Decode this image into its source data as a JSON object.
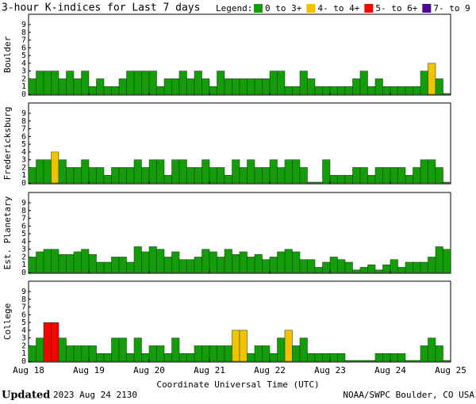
{
  "title": "3-hour K-indices for Last 7 days",
  "legend_title": "Legend:",
  "legend": [
    {
      "label": "0 to 3+",
      "color": "#159c0a"
    },
    {
      "label": "4- to 4+",
      "color": "#f2c200"
    },
    {
      "label": "5- to 6+",
      "color": "#ff0000"
    },
    {
      "label": "7- to 9",
      "color": "#4b0a8c"
    }
  ],
  "xticks": [
    "Aug 18",
    "Aug 19",
    "Aug 20",
    "Aug 21",
    "Aug 22",
    "Aug 23",
    "Aug 24",
    "Aug 25"
  ],
  "xlabel": "Coordinate Universal Time (UTC)",
  "footer": {
    "updated_label": "Updated",
    "updated": "2023 Aug 24 2130",
    "source": "NOAA/SWPC Boulder, CO USA"
  },
  "chart_data": [
    {
      "type": "bar",
      "ylabel": "Boulder",
      "ylim": [
        0,
        9
      ],
      "yticks": [
        0,
        1,
        2,
        3,
        4,
        5,
        6,
        7,
        8,
        9
      ],
      "values": [
        2,
        3,
        3,
        3,
        2,
        3,
        2,
        3,
        1,
        2,
        1,
        1,
        2,
        3,
        3,
        3,
        3,
        1,
        2,
        2,
        3,
        2,
        3,
        2,
        1,
        3,
        2,
        2,
        2,
        2,
        2,
        2,
        3,
        3,
        1,
        1,
        3,
        2,
        1,
        1,
        1,
        1,
        1,
        2,
        3,
        1,
        2,
        1,
        1,
        1,
        1,
        1,
        3,
        4,
        2,
        0
      ]
    },
    {
      "type": "bar",
      "ylabel": "Fredericksburg",
      "ylim": [
        0,
        9
      ],
      "yticks": [
        0,
        1,
        2,
        3,
        4,
        5,
        6,
        7,
        8,
        9
      ],
      "values": [
        2,
        3,
        3,
        4,
        3,
        2,
        2,
        3,
        2,
        2,
        1,
        2,
        2,
        2,
        3,
        2,
        3,
        3,
        1,
        3,
        3,
        2,
        2,
        3,
        2,
        2,
        1,
        3,
        2,
        3,
        2,
        2,
        3,
        2,
        3,
        3,
        2,
        0,
        0,
        3,
        1,
        1,
        1,
        2,
        2,
        1,
        2,
        2,
        2,
        2,
        1,
        2,
        3,
        3,
        2,
        0
      ]
    },
    {
      "type": "bar",
      "ylabel": "Est. Planetary",
      "ylim": [
        0,
        9
      ],
      "yticks": [
        0,
        1,
        2,
        3,
        4,
        5,
        6,
        7,
        8,
        9
      ],
      "values": [
        2,
        2.67,
        3,
        3,
        2.33,
        2.33,
        2.67,
        3,
        2.33,
        1.33,
        1.33,
        2,
        2,
        1.33,
        3.33,
        2.67,
        3.33,
        3,
        2,
        2.67,
        1.67,
        1.67,
        2,
        3,
        2.67,
        2,
        3,
        2.33,
        2.67,
        2,
        2.33,
        1.67,
        2,
        2.67,
        3,
        2.67,
        1.67,
        1.67,
        0.67,
        1.33,
        2,
        1.67,
        1.33,
        0.33,
        0.67,
        1,
        0.33,
        1,
        1.67,
        0.67,
        1.33,
        1.33,
        1.33,
        2,
        3.33,
        3
      ]
    },
    {
      "type": "bar",
      "ylabel": "College",
      "ylim": [
        0,
        9
      ],
      "yticks": [
        0,
        1,
        2,
        3,
        4,
        5,
        6,
        7,
        8,
        9
      ],
      "values": [
        2,
        3,
        5,
        5,
        3,
        2,
        2,
        2,
        2,
        1,
        1,
        3,
        3,
        1,
        3,
        1,
        2,
        2,
        1,
        3,
        1,
        1,
        2,
        2,
        2,
        2,
        2,
        4,
        4,
        1,
        2,
        2,
        1,
        3,
        4,
        2,
        3,
        1,
        1,
        1,
        1,
        1,
        0,
        0,
        0,
        0,
        1,
        1,
        1,
        1,
        0,
        0,
        2,
        3,
        2,
        0
      ]
    }
  ]
}
